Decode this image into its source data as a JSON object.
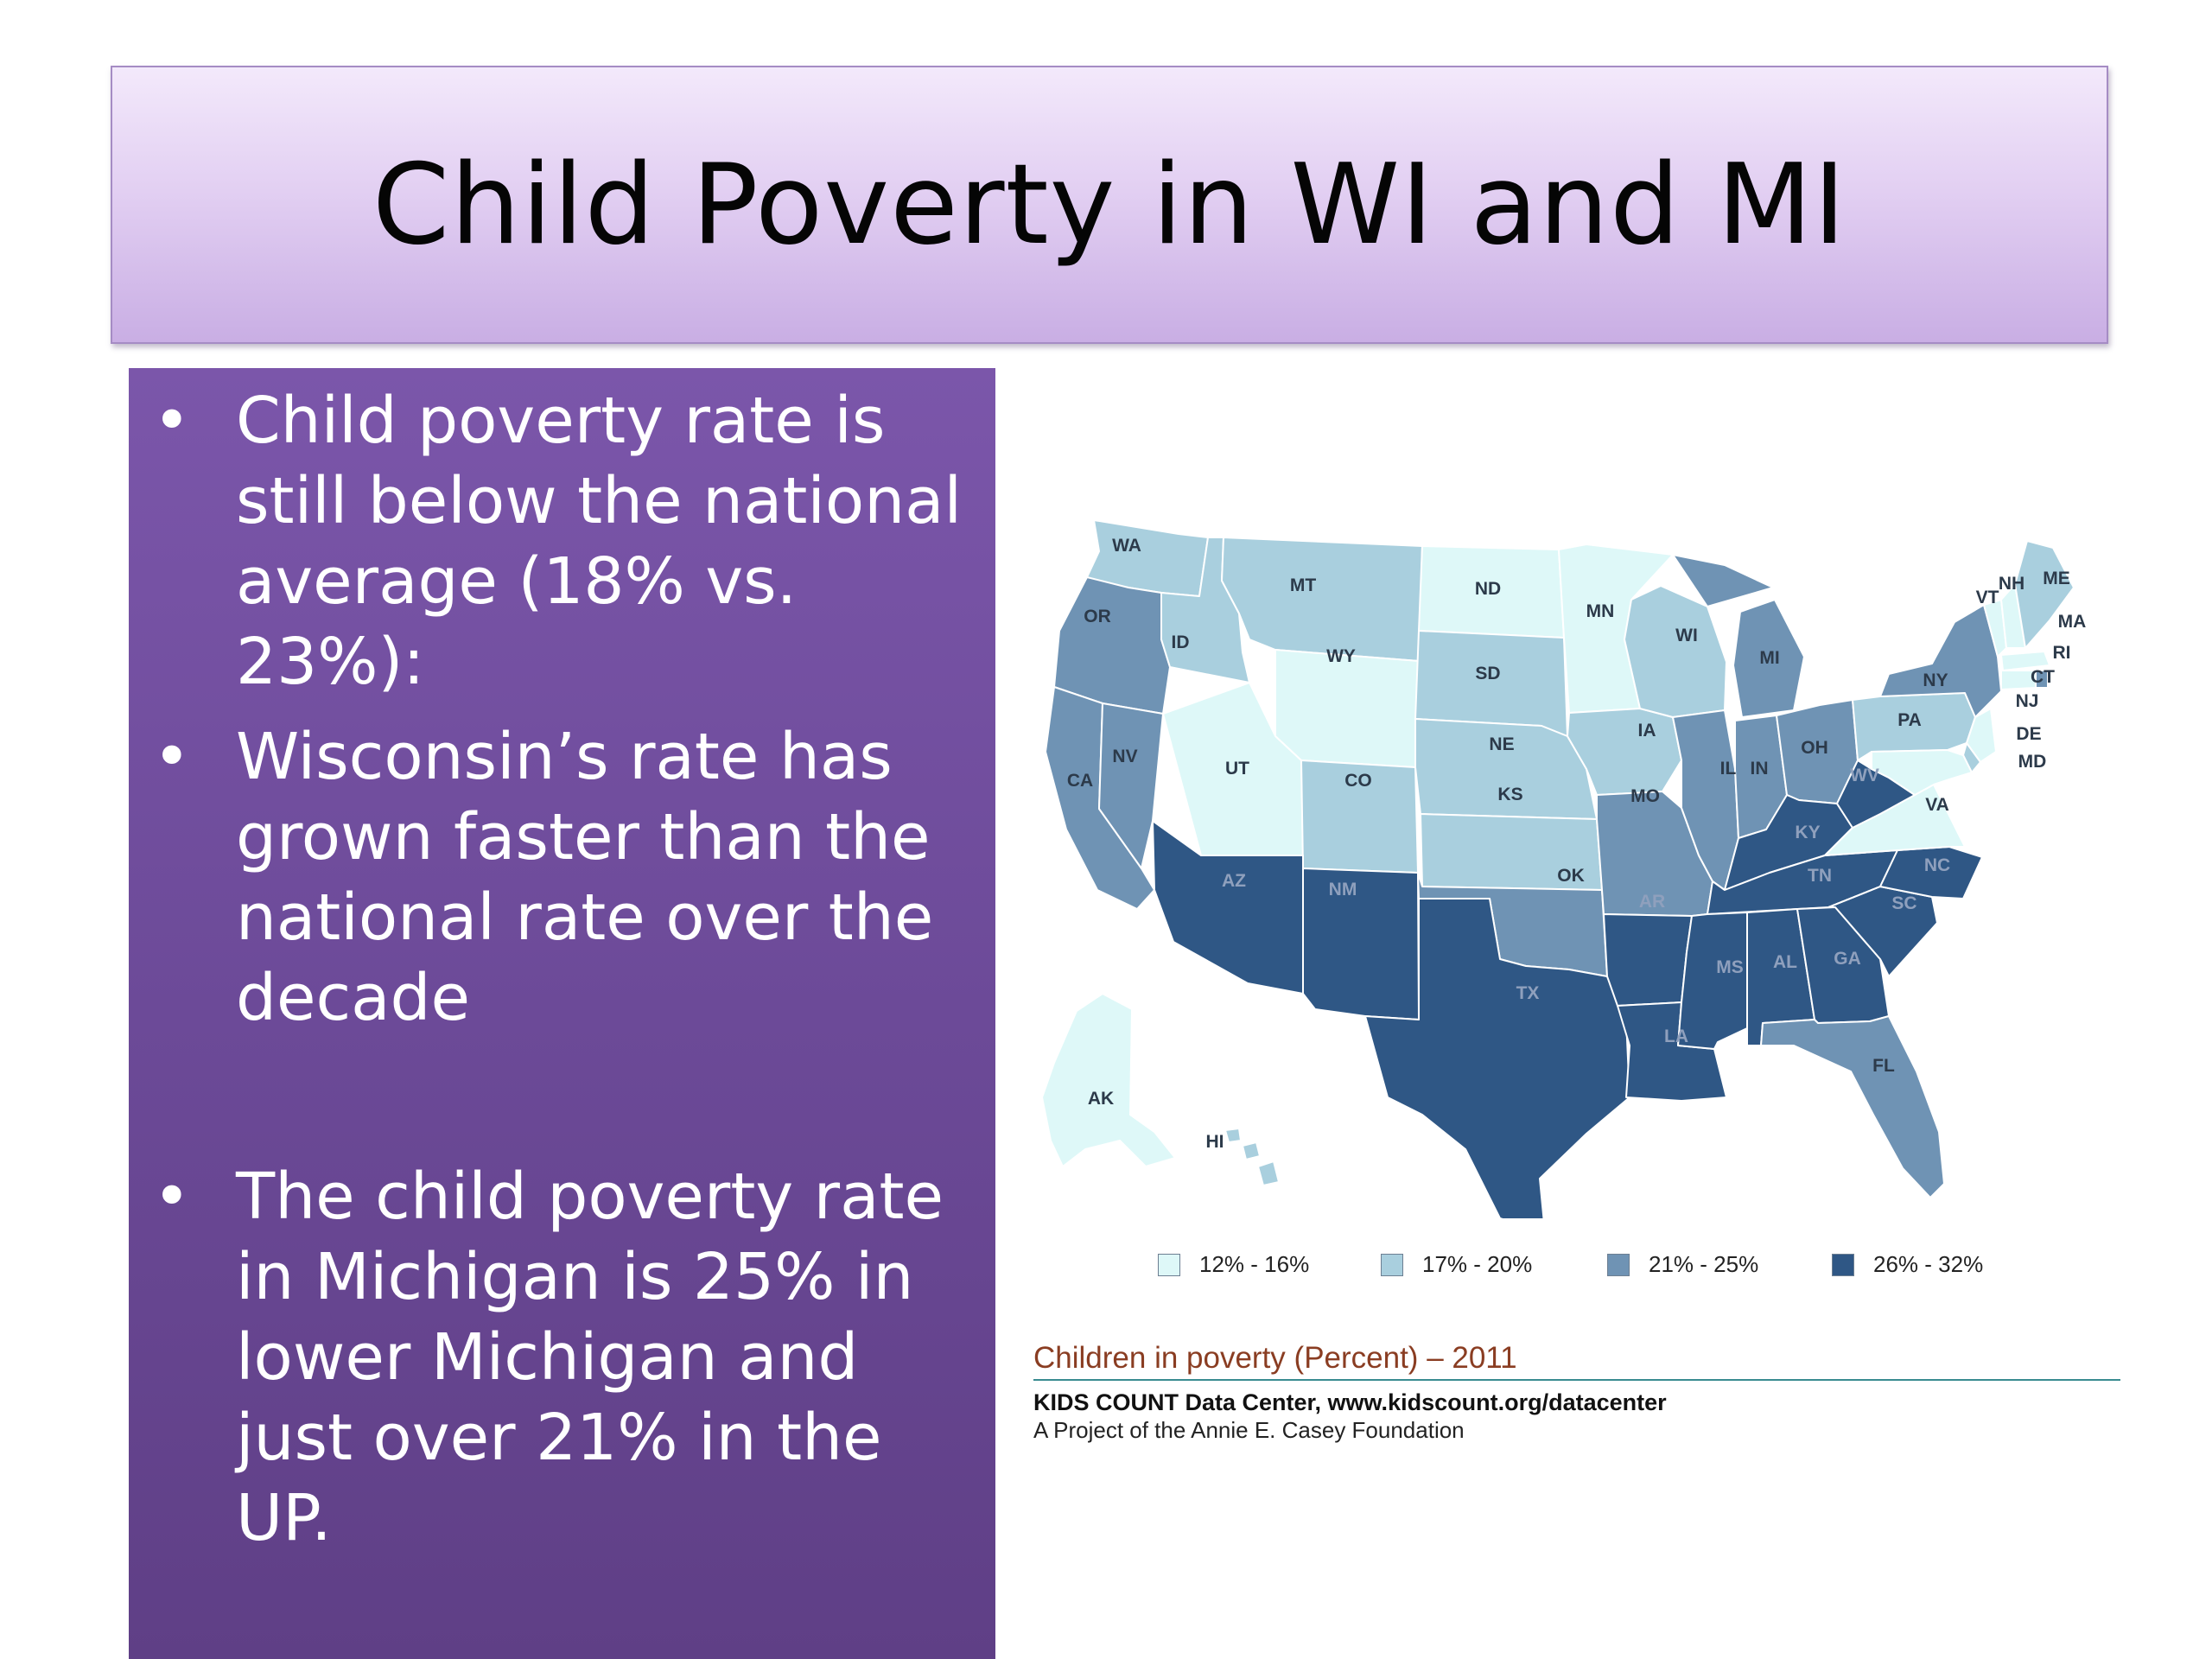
{
  "slide": {
    "title": "Child Poverty in WI and MI",
    "bullets": [
      {
        "marker": "•",
        "text": "Child poverty rate is still below the national average (18% vs. 23%):"
      },
      {
        "marker": "•",
        "text": "Wisconsin’s rate has grown faster than the national rate over the decade"
      },
      {
        "marker": "•",
        "text": "The child poverty rate in Michigan is 25% in lower Michigan and just over 21% in the UP."
      }
    ]
  },
  "map": {
    "title": "Children in poverty (Percent) – 2011",
    "source": "KIDS COUNT Data Center, www.kidscount.org/datacenter",
    "organization": "A Project of the Annie E. Casey Foundation",
    "colors": {
      "12-16": "#def8f8",
      "17-20": "#a9cfde",
      "21-25": "#6f93b4",
      "26-32": "#2f5785",
      "border": "#ffffff",
      "outline": "#1c1c1c"
    },
    "legend": [
      {
        "label": "12% - 16%",
        "color": "#def8f8"
      },
      {
        "label": "17% - 20%",
        "color": "#a9cfde"
      },
      {
        "label": "21% - 25%",
        "color": "#6f93b4"
      },
      {
        "label": "26% - 32%",
        "color": "#2f5785"
      }
    ],
    "state_labels": [
      "WA",
      "OR",
      "CA",
      "NV",
      "ID",
      "MT",
      "WY",
      "UT",
      "CO",
      "AZ",
      "NM",
      "ND",
      "SD",
      "NE",
      "KS",
      "OK",
      "TX",
      "MN",
      "IA",
      "MO",
      "AR",
      "LA",
      "WI",
      "IL",
      "MI",
      "IN",
      "OH",
      "KY",
      "TN",
      "MS",
      "AL",
      "GA",
      "FL",
      "SC",
      "NC",
      "VA",
      "WV",
      "PA",
      "NY",
      "VT",
      "NH",
      "ME",
      "MA",
      "RI",
      "CT",
      "NJ",
      "DE",
      "MD",
      "AK",
      "HI"
    ],
    "state_classes": {
      "WA": "17-20",
      "OR": "21-25",
      "CA": "21-25",
      "NV": "21-25",
      "ID": "17-20",
      "MT": "17-20",
      "WY": "12-16",
      "UT": "12-16",
      "CO": "17-20",
      "AZ": "26-32",
      "NM": "26-32",
      "ND": "12-16",
      "SD": "17-20",
      "NE": "17-20",
      "KS": "17-20",
      "OK": "21-25",
      "TX": "26-32",
      "MN": "12-16",
      "IA": "17-20",
      "MO": "21-25",
      "AR": "26-32",
      "LA": "26-32",
      "WI": "17-20",
      "IL": "21-25",
      "MI": "21-25",
      "IN": "21-25",
      "OH": "21-25",
      "KY": "26-32",
      "TN": "26-32",
      "MS": "26-32",
      "AL": "26-32",
      "GA": "26-32",
      "FL": "21-25",
      "SC": "26-32",
      "NC": "26-32",
      "VA": "12-16",
      "WV": "26-32",
      "PA": "17-20",
      "NY": "21-25",
      "VT": "12-16",
      "NH": "12-16",
      "ME": "17-20",
      "MA": "12-16",
      "RI": "21-25",
      "CT": "12-16",
      "NJ": "12-16",
      "DE": "17-20",
      "MD": "12-16",
      "AK": "12-16",
      "HI": "17-20"
    }
  }
}
